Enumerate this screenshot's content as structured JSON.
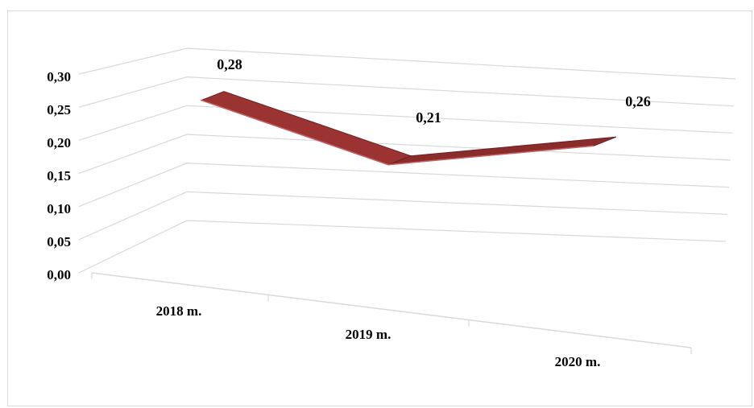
{
  "chart_data": {
    "type": "line",
    "title": "",
    "xlabel": "",
    "ylabel": "",
    "categories": [
      "2018 m.",
      "2019 m.",
      "2020 m."
    ],
    "series": [
      {
        "values": [
          0.28,
          0.21,
          0.26
        ],
        "color": "#8b2e2e"
      }
    ],
    "data_labels": [
      "0,28",
      "0,21",
      "0,26"
    ],
    "y_ticks": [
      "0,00",
      "0,05",
      "0,10",
      "0,15",
      "0,20",
      "0,25",
      "0,30"
    ],
    "ylim": [
      0,
      0.3
    ],
    "grid": true,
    "legend": "none",
    "style": "3d-ribbon"
  }
}
